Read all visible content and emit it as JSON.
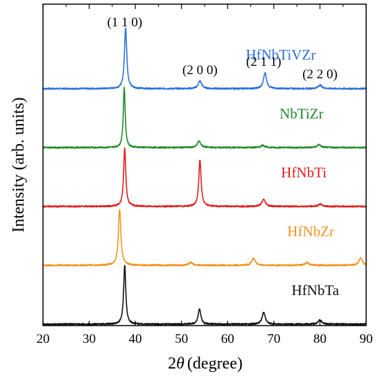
{
  "chart_data": {
    "type": "line",
    "xlabel_prefix": "2",
    "xlabel_symbol": "θ",
    "xlabel_unit": "(degree)",
    "ylabel": "Intensity (arb. units)",
    "xlim": [
      20,
      90
    ],
    "x_ticks": [
      20,
      30,
      40,
      50,
      60,
      70,
      80,
      90
    ],
    "y_ticks_shown": false,
    "grid": false,
    "peak_labels": [
      {
        "text": "(1 1 0)",
        "x": 37.7
      },
      {
        "text": "(2 0 0)",
        "x": 54
      },
      {
        "text": "(2 1 1)",
        "x": 67.8
      },
      {
        "text": "(2 2 0)",
        "x": 80
      }
    ],
    "series": [
      {
        "name": "HfNbTiVZr",
        "color": "#2a6fe0",
        "baseline": 4.0,
        "label_x": 71.5,
        "peaks": [
          [
            37.9,
            1.04,
            0.3
          ],
          [
            54.0,
            0.13,
            0.45
          ],
          [
            68.1,
            0.27,
            0.4
          ],
          [
            80.0,
            0.06,
            0.5
          ]
        ]
      },
      {
        "name": "NbTiZr",
        "color": "#1f8a2a",
        "baseline": 3.0,
        "label_x": 76,
        "peaks": [
          [
            37.6,
            1.02,
            0.25
          ],
          [
            53.8,
            0.11,
            0.45
          ],
          [
            67.6,
            0.04,
            0.45
          ],
          [
            79.8,
            0.05,
            0.45
          ]
        ]
      },
      {
        "name": "HfNbTi",
        "color": "#e41b1b",
        "baseline": 2.0,
        "label_x": 76.5,
        "peaks": [
          [
            37.7,
            0.99,
            0.28
          ],
          [
            54.0,
            0.79,
            0.3
          ],
          [
            67.8,
            0.12,
            0.45
          ],
          [
            80.1,
            0.04,
            0.45
          ]
        ]
      },
      {
        "name": "HfNbZr",
        "color": "#f39221",
        "baseline": 1.0,
        "label_x": 78,
        "peaks": [
          [
            36.6,
            0.95,
            0.32
          ],
          [
            52.0,
            0.05,
            0.45
          ],
          [
            65.6,
            0.12,
            0.45
          ],
          [
            77.2,
            0.05,
            0.45
          ],
          [
            88.8,
            0.12,
            0.45
          ]
        ]
      },
      {
        "name": "HfNbTa",
        "color": "#111111",
        "baseline": 0.0,
        "label_x": 79,
        "peaks": [
          [
            37.7,
            1.0,
            0.28
          ],
          [
            53.9,
            0.26,
            0.35
          ],
          [
            67.8,
            0.2,
            0.4
          ],
          [
            80.0,
            0.07,
            0.45
          ]
        ]
      }
    ]
  }
}
